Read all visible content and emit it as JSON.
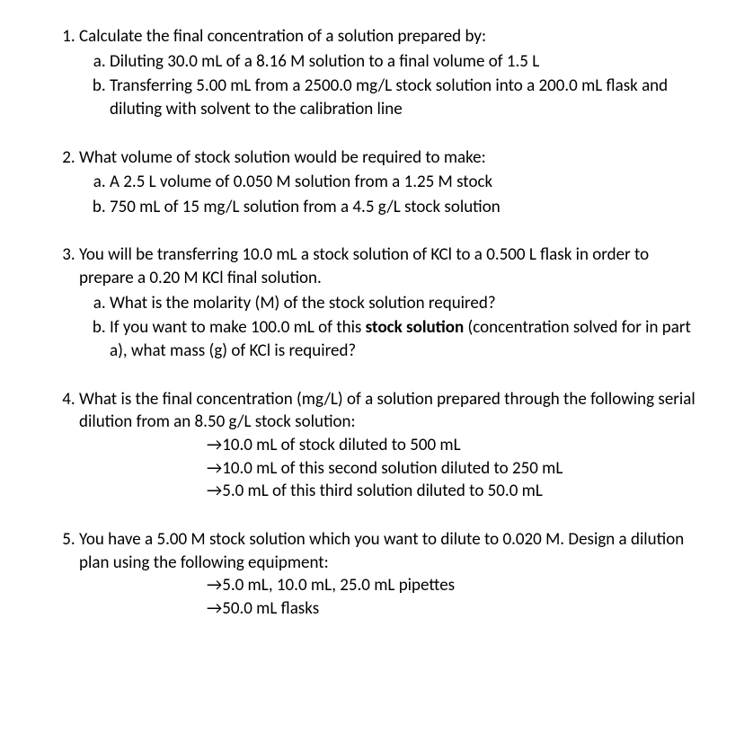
{
  "arrow_glyph": "→",
  "q1": {
    "prompt": "Calculate the final concentration of a solution prepared by:",
    "a": "Diluting 30.0 mL of a 8.16 M solution to a final volume of 1.5 L",
    "b": "Transferring 5.00 mL from a 2500.0 mg/L stock solution into a 200.0 mL flask and diluting with solvent to the calibration line"
  },
  "q2": {
    "prompt": "What volume of stock solution would be required to make:",
    "a": "A 2.5 L volume of 0.050 M solution from a 1.25 M stock",
    "b": "750 mL of 15 mg/L solution from a 4.5 g/L stock solution"
  },
  "q3": {
    "prompt": "You will be transferring 10.0 mL a stock solution of KCl to a 0.500 L flask in order to prepare a 0.20 M KCl final solution.",
    "a": "What is the molarity (M) of the stock solution required?",
    "b_pre": "If you want to make 100.0 mL of this ",
    "b_bold": "stock solution",
    "b_post": " (concentration solved for in part a), what mass (g) of KCl is required?"
  },
  "q4": {
    "prompt": "What is the final concentration (mg/L) of a solution prepared through the following serial dilution from an 8.50 g/L stock solution:",
    "step1": "10.0 mL of stock diluted to 500 mL",
    "step2": "10.0 mL of this second solution diluted to 250 mL",
    "step3": "5.0 mL of this third solution diluted to 50.0 mL"
  },
  "q5": {
    "prompt": "You have a 5.00 M stock solution which you want to dilute to 0.020 M. Design a dilution plan using the following equipment:",
    "item1": "5.0 mL, 10.0 mL, 25.0 mL pipettes",
    "item2": "50.0 mL flasks"
  }
}
